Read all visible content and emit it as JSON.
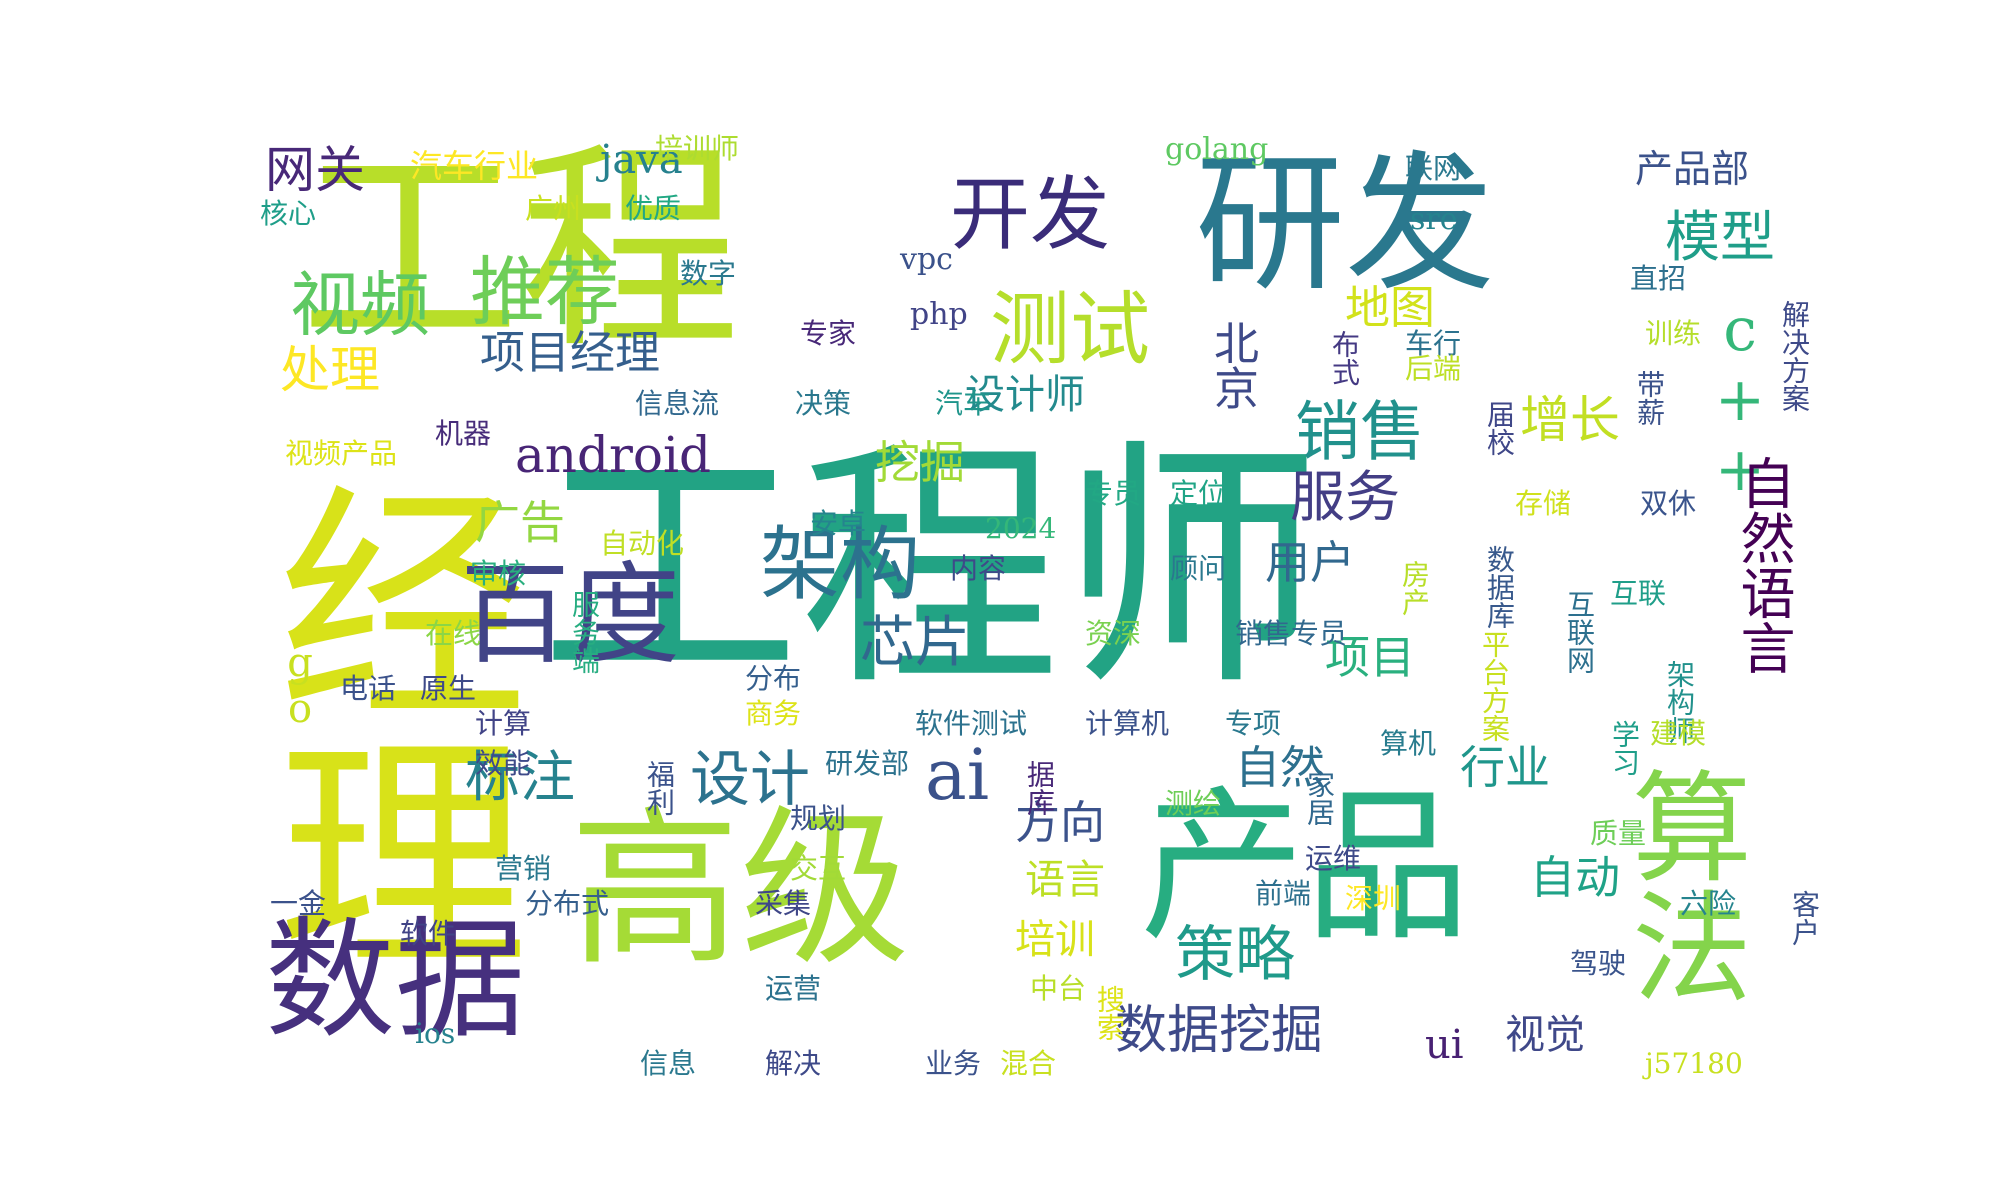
{
  "word_cloud": {
    "palette": [
      "#440154",
      "#482878",
      "#3e4a89",
      "#31688e",
      "#26828e",
      "#1f9e89",
      "#35b779",
      "#6ece58",
      "#b5de2b",
      "#fde725"
    ],
    "words": [
      {
        "text": "工程师",
        "color": "#22a384"
      },
      {
        "text": "工程",
        "color": "#b8de29"
      },
      {
        "text": "研发",
        "color": "#2a788e"
      },
      {
        "text": "经理",
        "color": "#d8e219"
      },
      {
        "text": "高级",
        "color": "#a5db36"
      },
      {
        "text": "产品",
        "color": "#27ad81"
      },
      {
        "text": "数据",
        "color": "#46307e"
      },
      {
        "text": "算法",
        "color": "#84d44b"
      },
      {
        "text": "百度",
        "color": "#414487"
      },
      {
        "text": "开发",
        "color": "#3a2c79"
      },
      {
        "text": "推荐",
        "color": "#6ece58"
      },
      {
        "text": "视频",
        "color": "#5ec962"
      },
      {
        "text": "架构",
        "color": "#2c728e"
      },
      {
        "text": "测试",
        "color": "#b5de2b"
      },
      {
        "text": "android",
        "color": "#482576"
      },
      {
        "text": "ai",
        "color": "#3b528b"
      },
      {
        "text": "销售",
        "color": "#21918c"
      },
      {
        "text": "模型",
        "color": "#1f9e89"
      },
      {
        "text": "c++",
        "color": "#35b779"
      },
      {
        "text": "服务",
        "color": "#433e85"
      },
      {
        "text": "设计",
        "color": "#2c728e"
      },
      {
        "text": "策略",
        "color": "#1f9a8a"
      },
      {
        "text": "自然语言",
        "color": "#440154"
      },
      {
        "text": "数据挖掘",
        "color": "#3e4a89"
      },
      {
        "text": "芯片",
        "color": "#31688e"
      },
      {
        "text": "标注",
        "color": "#26828e"
      },
      {
        "text": "网关",
        "color": "#482878"
      },
      {
        "text": "处理",
        "color": "#fde725"
      },
      {
        "text": "增长",
        "color": "#c2df23"
      },
      {
        "text": "地图",
        "color": "#d2e21b"
      },
      {
        "text": "项目经理",
        "color": "#355f8d"
      },
      {
        "text": "北京",
        "color": "#3e4a89"
      },
      {
        "text": "挖掘",
        "color": "#a2da37"
      },
      {
        "text": "广告",
        "color": "#93d741"
      },
      {
        "text": "用户",
        "color": "#31688e"
      },
      {
        "text": "项目",
        "color": "#2ab07f"
      },
      {
        "text": "方向",
        "color": "#3b528b"
      },
      {
        "text": "自然",
        "color": "#2d708e"
      },
      {
        "text": "行业",
        "color": "#1f968b"
      },
      {
        "text": "自动",
        "color": "#1fa287"
      },
      {
        "text": "设计师",
        "color": "#238a8d"
      },
      {
        "text": "java",
        "color": "#26818e"
      },
      {
        "text": "go",
        "color": "#c8e020"
      },
      {
        "text": "语言",
        "color": "#bddf26"
      },
      {
        "text": "培训",
        "color": "#d8e219"
      },
      {
        "text": "视觉",
        "color": "#3f4889"
      },
      {
        "text": "ui",
        "color": "#482173"
      },
      {
        "text": "产品部",
        "color": "#3b528b"
      },
      {
        "text": "汽车行业",
        "color": "#fde725"
      },
      {
        "text": "培训师",
        "color": "#addc30"
      },
      {
        "text": "golang",
        "color": "#5ec962"
      },
      {
        "text": "联网",
        "color": "#2a788e"
      },
      {
        "text": "sre",
        "color": "#25838e"
      },
      {
        "text": "核心",
        "color": "#1f9e89"
      },
      {
        "text": "广州",
        "color": "#c8e020"
      },
      {
        "text": "优质",
        "color": "#22a884"
      },
      {
        "text": "vpc",
        "color": "#3b528b"
      },
      {
        "text": "数字",
        "color": "#2a788e"
      },
      {
        "text": "php",
        "color": "#414487"
      },
      {
        "text": "专家",
        "color": "#482878"
      },
      {
        "text": "直招",
        "color": "#2d708e"
      },
      {
        "text": "解决方案",
        "color": "#3e4a89"
      },
      {
        "text": "车行",
        "color": "#2c728e"
      },
      {
        "text": "布式",
        "color": "#443983"
      },
      {
        "text": "训练",
        "color": "#b5de2b"
      },
      {
        "text": "后端",
        "color": "#bddf26"
      },
      {
        "text": "带薪",
        "color": "#3b528b"
      },
      {
        "text": "信息流",
        "color": "#31688e"
      },
      {
        "text": "决策",
        "color": "#2a788e"
      },
      {
        "text": "汽车",
        "color": "#1f958b"
      },
      {
        "text": "机器",
        "color": "#472c7a"
      },
      {
        "text": "视频产品",
        "color": "#dde318"
      },
      {
        "text": "届校",
        "color": "#3f4788"
      },
      {
        "text": "专员",
        "color": "#22a884"
      },
      {
        "text": "定位",
        "color": "#20a486"
      },
      {
        "text": "存储",
        "color": "#d0e11c"
      },
      {
        "text": "双休",
        "color": "#3a548c"
      },
      {
        "text": "安卓",
        "color": "#25848e"
      },
      {
        "text": "2024",
        "color": "#35b779"
      },
      {
        "text": "自动化",
        "color": "#c0df25"
      },
      {
        "text": "审核",
        "color": "#29af7f"
      },
      {
        "text": "内容",
        "color": "#3e4a89"
      },
      {
        "text": "顾问",
        "color": "#2a788e"
      },
      {
        "text": "数据库",
        "color": "#38598c"
      },
      {
        "text": "服务端",
        "color": "#27ad81"
      },
      {
        "text": "在线",
        "color": "#8bd646"
      },
      {
        "text": "房产",
        "color": "#b8de29"
      },
      {
        "text": "互联网",
        "color": "#2d708e"
      },
      {
        "text": "互联",
        "color": "#1f9e89"
      },
      {
        "text": "资深",
        "color": "#7ad151"
      },
      {
        "text": "销售专员",
        "color": "#31688e"
      },
      {
        "text": "分布",
        "color": "#355f8d"
      },
      {
        "text": "商务",
        "color": "#dde318"
      },
      {
        "text": "平台方案",
        "color": "#c8e020"
      },
      {
        "text": "电话",
        "color": "#3b528b"
      },
      {
        "text": "原生",
        "color": "#3e4a89"
      },
      {
        "text": "软件测试",
        "color": "#2c728e"
      },
      {
        "text": "计算机",
        "color": "#3b528b"
      },
      {
        "text": "专项",
        "color": "#2a788e"
      },
      {
        "text": "架构师",
        "color": "#21918c"
      },
      {
        "text": "计算",
        "color": "#414487"
      },
      {
        "text": "算机",
        "color": "#287c8e"
      },
      {
        "text": "学习",
        "color": "#1f9e89"
      },
      {
        "text": "建模",
        "color": "#b5de2b"
      },
      {
        "text": "效能",
        "color": "#3e4a89"
      },
      {
        "text": "研发部",
        "color": "#2c728e"
      },
      {
        "text": "福利",
        "color": "#3b528b"
      },
      {
        "text": "据库",
        "color": "#482878"
      },
      {
        "text": "测绘",
        "color": "#6ece58"
      },
      {
        "text": "家居",
        "color": "#31688e"
      },
      {
        "text": "规划",
        "color": "#3b528b"
      },
      {
        "text": "质量",
        "color": "#6ece58"
      },
      {
        "text": "营销",
        "color": "#2a788e"
      },
      {
        "text": "交互",
        "color": "#a2da37"
      },
      {
        "text": "运维",
        "color": "#3e4a89"
      },
      {
        "text": "一金",
        "color": "#3b528b"
      },
      {
        "text": "分布式",
        "color": "#355f8d"
      },
      {
        "text": "采集",
        "color": "#3f4788"
      },
      {
        "text": "前端",
        "color": "#2d708e"
      },
      {
        "text": "深圳",
        "color": "#fde725"
      },
      {
        "text": "六险",
        "color": "#25848e"
      },
      {
        "text": "客户",
        "color": "#3b528b"
      },
      {
        "text": "软件",
        "color": "#414487"
      },
      {
        "text": "驾驶",
        "color": "#3a548c"
      },
      {
        "text": "运营",
        "color": "#2c728e"
      },
      {
        "text": "中台",
        "color": "#b8de29"
      },
      {
        "text": "搜索",
        "color": "#dde318"
      },
      {
        "text": "ios",
        "color": "#26828e"
      },
      {
        "text": "信息",
        "color": "#2a788e"
      },
      {
        "text": "解决",
        "color": "#3e4a89"
      },
      {
        "text": "业务",
        "color": "#3b528b"
      },
      {
        "text": "混合",
        "color": "#c8e020"
      },
      {
        "text": "j57180",
        "color": "#c8e020"
      }
    ]
  }
}
